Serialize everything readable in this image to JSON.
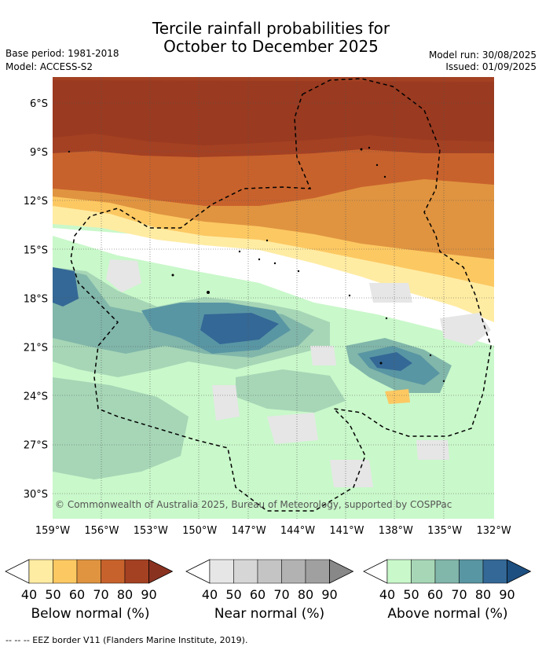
{
  "title_line1": "Tercile rainfall probabilities for",
  "title_line2": "October to December 2025",
  "base_period": "Base period: 1981-2018",
  "model": "Model: ACCESS-S2",
  "model_run": "Model run: 30/08/2025",
  "issued": "Issued: 01/09/2025",
  "map": {
    "lat_ticks": [
      "6°S",
      "9°S",
      "12°S",
      "15°S",
      "18°S",
      "21°S",
      "24°S",
      "27°S",
      "30°S"
    ],
    "lon_ticks": [
      "159°W",
      "156°W",
      "153°W",
      "150°W",
      "147°W",
      "144°W",
      "141°W",
      "138°W",
      "135°W",
      "132°W"
    ],
    "lon_range": [
      -159,
      -132
    ],
    "lat_range": [
      -32,
      -5
    ],
    "copyright": "© Commonwealth of Australia 2025, Bureau of Meteorology, supported by COSPPac"
  },
  "colorbars": [
    {
      "label": "Below normal (%)",
      "ticks": [
        "40",
        "50",
        "60",
        "70",
        "80",
        "90"
      ],
      "colors": [
        "#ffeca3",
        "#fcc862",
        "#e09440",
        "#c8622c",
        "#a44123",
        "#8a3220"
      ]
    },
    {
      "label": "Near normal (%)",
      "ticks": [
        "40",
        "50",
        "60",
        "70",
        "80",
        "90"
      ],
      "colors": [
        "#e6e6e6",
        "#d6d6d6",
        "#c4c4c4",
        "#b2b2b2",
        "#a0a0a0",
        "#888888"
      ]
    },
    {
      "label": "Above normal (%)",
      "ticks": [
        "40",
        "50",
        "60",
        "70",
        "80",
        "90"
      ],
      "colors": [
        "#c9f8ca",
        "#a6d6b6",
        "#81b6aa",
        "#5996a4",
        "#346896",
        "#1d4f80"
      ]
    }
  ],
  "footnote": "--  --  -- EEZ border V11 (Flanders Marine Institute, 2019)."
}
